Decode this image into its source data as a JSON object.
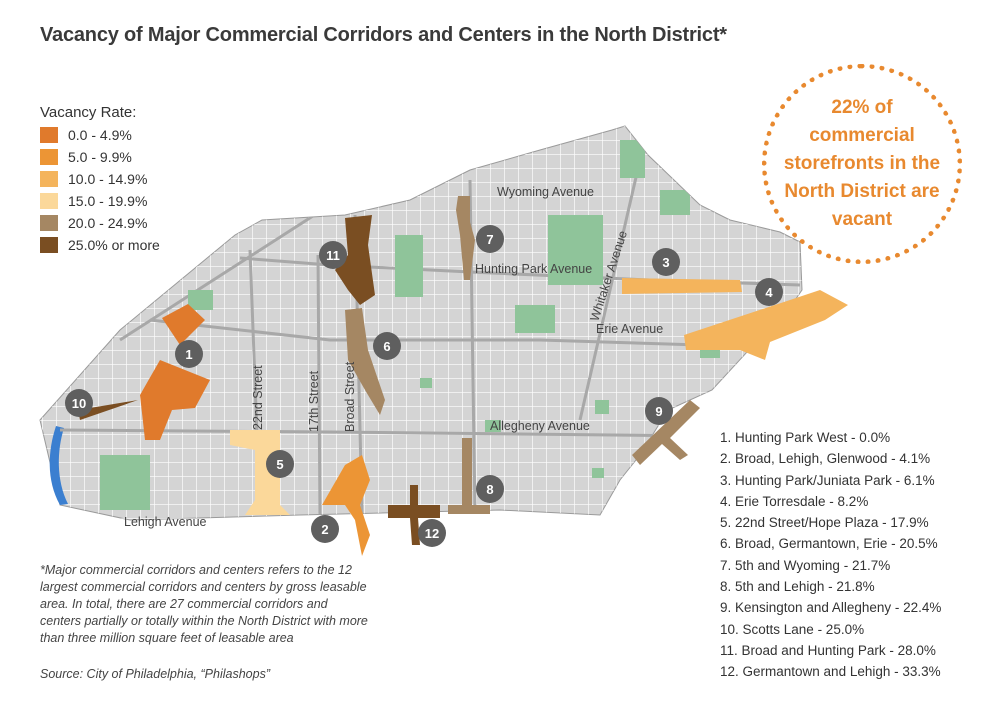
{
  "title": "Vacancy of Major Commercial Corridors and Centers in the North District*",
  "legend": {
    "title": "Vacancy Rate:",
    "items": [
      {
        "label": "0.0 - 4.9%",
        "color": "#e07a2c"
      },
      {
        "label": "5.0 - 9.9%",
        "color": "#ec9535"
      },
      {
        "label": "10.0 - 14.9%",
        "color": "#f4b45c"
      },
      {
        "label": "15.0 - 19.9%",
        "color": "#fbd89a"
      },
      {
        "label": "20.0 - 24.9%",
        "color": "#a58763"
      },
      {
        "label": "25.0% or more",
        "color": "#7a4e22"
      }
    ]
  },
  "callout": "22% of commercial storefronts in the North District are vacant",
  "streets": {
    "wyoming": "Wyoming Avenue",
    "hunting_park": "Hunting Park Avenue",
    "whitaker": "Whitaker Avenue",
    "erie": "Erie Avenue",
    "allegheny": "Allegheny Avenue",
    "lehigh": "Lehigh Avenue",
    "st22": "22nd Street",
    "st17": "17th Street",
    "broad": "Broad Street"
  },
  "markers": [
    "1",
    "2",
    "3",
    "4",
    "5",
    "6",
    "7",
    "8",
    "9",
    "10",
    "11",
    "12"
  ],
  "corridors": [
    "1.  Hunting Park West - 0.0%",
    "2.  Broad, Lehigh, Glenwood - 4.1%",
    "3.  Hunting Park/Juniata Park - 6.1%",
    "4.  Erie Torresdale - 8.2%",
    "5.  22nd Street/Hope Plaza - 17.9%",
    "6.  Broad, Germantown, Erie - 20.5%",
    "7.  5th and Wyoming - 21.7%",
    "8.  5th and Lehigh - 21.8%",
    "9.  Kensington and Allegheny - 22.4%",
    "10. Scotts Lane - 25.0%",
    "11. Broad and Hunting Park - 28.0%",
    "12. Germantown and Lehigh - 33.3%"
  ],
  "note": "*Major commercial corridors and centers refers to the 12 largest commercial corridors and centers by gross leasable area. In total, there are 27 commercial corridors and centers partially or totally within the North District with more than three million square feet of leasable area",
  "source": "Source: City of Philadelphia, “Philashops”",
  "colors": {
    "district": "#d4d4d4",
    "park": "#8fc49a",
    "river": "#3b7fd0",
    "marker": "#5f5f5f",
    "callout": "#e8892f"
  }
}
